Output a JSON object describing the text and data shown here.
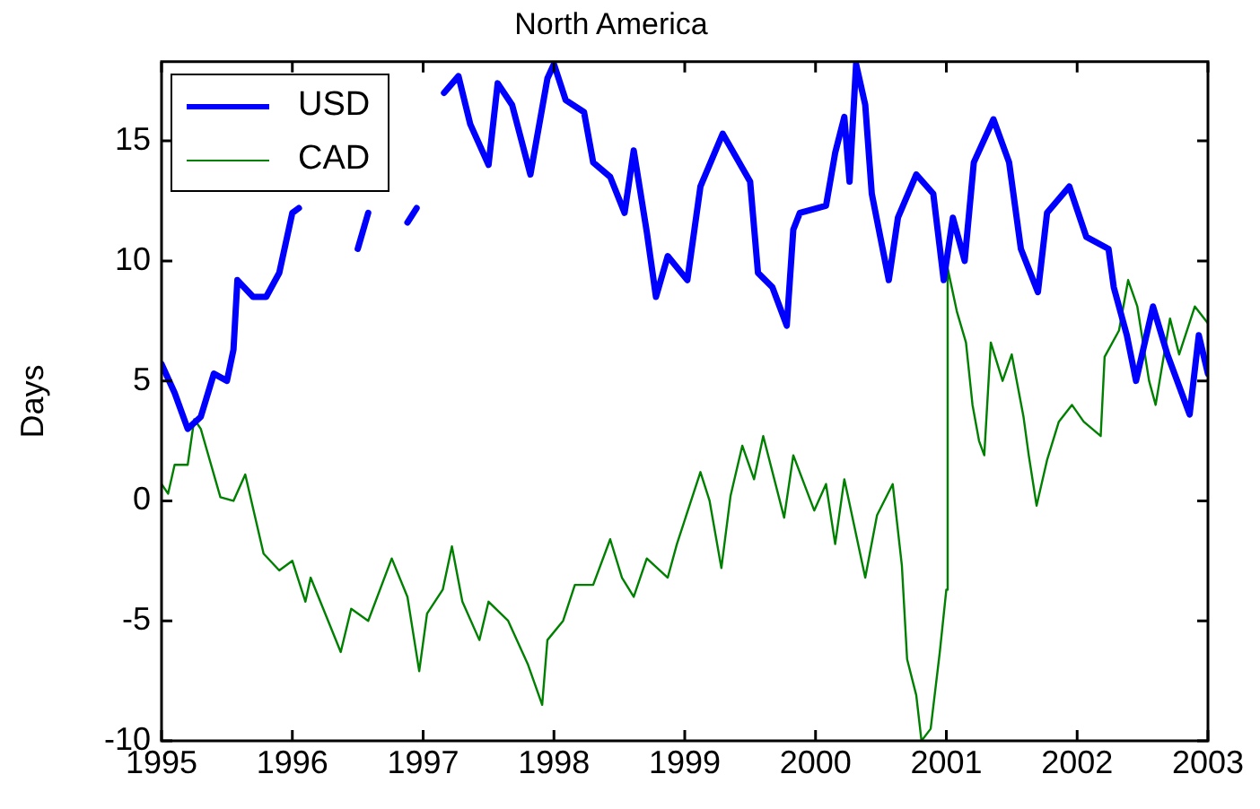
{
  "chart_data": {
    "type": "line",
    "title": "North America",
    "ylabel": "Days",
    "xlim": [
      1995,
      2003
    ],
    "xticks": [
      1995,
      1996,
      1997,
      1998,
      1999,
      2000,
      2001,
      2002,
      2003
    ],
    "ylim": [
      -10,
      18.3
    ],
    "yticks": [
      -10,
      -5,
      0,
      5,
      10,
      15
    ],
    "grid": false,
    "legend": "top left",
    "marker": "none",
    "line_style": "solid",
    "series": [
      {
        "name": "USD",
        "color": "#0000ff",
        "x": [
          1995.0,
          1995.1,
          1995.2,
          1995.3,
          1995.4,
          1995.5,
          1995.55,
          1995.58,
          1995.7,
          1995.8,
          1995.9,
          1996.0,
          1996.05,
          1996.45,
          1996.5,
          1996.58,
          1996.62,
          1996.82,
          1996.88,
          1996.95,
          1997.0,
          1997.16,
          1997.27,
          1997.36,
          1997.5,
          1997.57,
          1997.68,
          1997.82,
          1997.95,
          1998.0,
          1998.09,
          1998.23,
          1998.3,
          1998.43,
          1998.54,
          1998.61,
          1998.71,
          1998.78,
          1998.87,
          1999.02,
          1999.12,
          1999.29,
          1999.5,
          1999.56,
          1999.67,
          1999.78,
          1999.83,
          1999.88,
          2000.08,
          2000.15,
          2000.22,
          2000.26,
          2000.31,
          2000.38,
          2000.43,
          2000.56,
          2000.63,
          2000.77,
          2000.9,
          2000.98,
          2001.05,
          2001.14,
          2001.21,
          2001.36,
          2001.48,
          2001.57,
          2001.7,
          2001.77,
          2001.94,
          2002.07,
          2002.24,
          2002.28,
          2002.38,
          2002.45,
          2002.58,
          2002.69,
          2002.86,
          2002.93,
          2003.0
        ],
        "values": [
          5.7,
          4.5,
          3.0,
          3.5,
          5.3,
          5.0,
          6.3,
          9.2,
          8.5,
          8.5,
          9.5,
          12.0,
          12.2,
          null,
          10.5,
          12.0,
          null,
          null,
          11.6,
          12.2,
          null,
          17.0,
          17.7,
          15.7,
          14.0,
          17.4,
          16.5,
          13.6,
          17.6,
          18.2,
          16.7,
          16.2,
          14.1,
          13.5,
          12.0,
          14.6,
          11.2,
          8.5,
          10.2,
          9.2,
          13.1,
          15.3,
          13.3,
          9.5,
          8.9,
          7.3,
          11.3,
          12.0,
          12.3,
          14.5,
          16.0,
          13.3,
          18.2,
          16.5,
          12.8,
          9.2,
          11.8,
          13.6,
          12.8,
          9.2,
          11.8,
          10.0,
          14.1,
          15.9,
          14.1,
          10.5,
          8.7,
          12.0,
          13.1,
          11.0,
          10.5,
          8.9,
          6.9,
          5.0,
          8.1,
          6.1,
          3.6,
          6.9,
          5.3
        ]
      },
      {
        "name": "CAD",
        "color": "#008000",
        "x": [
          1995.0,
          1995.05,
          1995.1,
          1995.2,
          1995.25,
          1995.3,
          1995.45,
          1995.55,
          1995.64,
          1995.78,
          1995.9,
          1996.0,
          1996.1,
          1996.14,
          1996.37,
          1996.45,
          1996.58,
          1996.76,
          1996.88,
          1996.97,
          1997.03,
          1997.15,
          1997.22,
          1997.3,
          1997.43,
          1997.5,
          1997.65,
          1997.8,
          1997.91,
          1997.95,
          1998.07,
          1998.16,
          1998.3,
          1998.43,
          1998.52,
          1998.61,
          1998.71,
          1998.87,
          1998.94,
          1999.12,
          1999.19,
          1999.28,
          1999.35,
          1999.44,
          1999.53,
          1999.6,
          1999.76,
          1999.83,
          1999.99,
          2000.08,
          2000.15,
          2000.22,
          2000.38,
          2000.47,
          2000.59,
          2000.66,
          2000.7,
          2000.77,
          2000.81,
          2000.88,
          2000.95,
          2001.0,
          2001.01,
          2001.08,
          2001.15,
          2001.2,
          2001.25,
          2001.29,
          2001.34,
          2001.43,
          2001.5,
          2001.59,
          2001.63,
          2001.69,
          2001.77,
          2001.86,
          2001.96,
          2002.05,
          2002.18,
          2002.21,
          2002.32,
          2002.39,
          2002.46,
          2002.55,
          2002.6,
          2002.71,
          2002.78,
          2002.9,
          2003.0
        ],
        "values": [
          0.7,
          0.3,
          1.5,
          1.5,
          3.4,
          3.0,
          0.15,
          0.0,
          1.1,
          -2.2,
          -2.9,
          -2.5,
          -4.2,
          -3.2,
          -6.3,
          -4.5,
          -5.0,
          -2.4,
          -4.0,
          -7.1,
          -4.7,
          -3.7,
          -1.9,
          -4.2,
          -5.8,
          -4.2,
          -5.0,
          -6.8,
          -8.5,
          -5.8,
          -5.0,
          -3.5,
          -3.5,
          -1.6,
          -3.2,
          -4.0,
          -2.4,
          -3.2,
          -1.8,
          1.2,
          0.0,
          -2.8,
          0.2,
          2.3,
          0.9,
          2.7,
          -0.7,
          1.9,
          -0.4,
          0.7,
          -1.8,
          0.9,
          -3.2,
          -0.6,
          0.7,
          -2.7,
          -6.6,
          -8.1,
          -10.0,
          -9.5,
          -6.3,
          -3.7,
          9.7,
          7.9,
          6.6,
          4.0,
          2.5,
          1.9,
          6.6,
          5.0,
          6.1,
          3.5,
          1.9,
          -0.2,
          1.7,
          3.3,
          4.0,
          3.3,
          2.7,
          6.0,
          7.1,
          9.2,
          8.1,
          5.0,
          4.0,
          7.6,
          6.1,
          8.1,
          7.4
        ]
      }
    ]
  }
}
